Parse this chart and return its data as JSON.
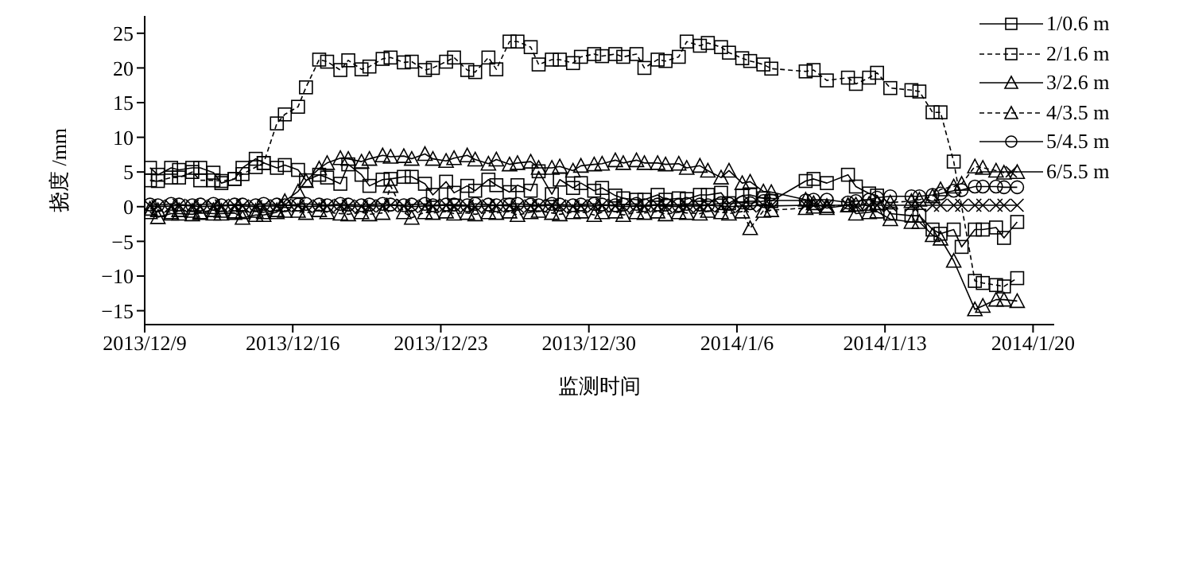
{
  "chart_data": {
    "type": "line",
    "xlabel": "监测时间",
    "ylabel": "挠度 /mm",
    "legend": "top right",
    "xlim": [
      "2013-12-09",
      "2014-01-21"
    ],
    "xticks": [
      {
        "value": "2013-12-09",
        "label": "2013/12/9"
      },
      {
        "value": "2013-12-16",
        "label": "2013/12/16"
      },
      {
        "value": "2013-12-23",
        "label": "2013/12/23"
      },
      {
        "value": "2013-12-30",
        "label": "2013/12/30"
      },
      {
        "value": "2014-01-06",
        "label": "2014/1/6"
      },
      {
        "value": "2014-01-13",
        "label": "2014/1/13"
      },
      {
        "value": "2014-01-20",
        "label": "2014/1/20"
      }
    ],
    "ylim": [
      -17,
      27.5
    ],
    "yticks": [
      -15,
      -10,
      -5,
      0,
      5,
      10,
      15,
      20,
      25
    ],
    "x": [
      "2013-12-09T06:00",
      "2013-12-09T15:00",
      "2013-12-10T06:00",
      "2013-12-10T15:00",
      "2013-12-11T06:00",
      "2013-12-11T15:00",
      "2013-12-12T06:00",
      "2013-12-12T15:00",
      "2013-12-13T06:00",
      "2013-12-13T15:00",
      "2013-12-14T06:00",
      "2013-12-14T15:00",
      "2013-12-15T06:00",
      "2013-12-15T15:00",
      "2013-12-16T06:00",
      "2013-12-16T15:00",
      "2013-12-17T06:00",
      "2013-12-17T15:00",
      "2013-12-18T06:00",
      "2013-12-18T15:00",
      "2013-12-19T06:00",
      "2013-12-19T15:00",
      "2013-12-20T06:00",
      "2013-12-20T15:00",
      "2013-12-21T06:00",
      "2013-12-21T15:00",
      "2013-12-22T06:00",
      "2013-12-22T15:00",
      "2013-12-23T06:00",
      "2013-12-23T15:00",
      "2013-12-24T06:00",
      "2013-12-24T15:00",
      "2013-12-25T06:00",
      "2013-12-25T15:00",
      "2013-12-26T06:00",
      "2013-12-26T15:00",
      "2013-12-27T06:00",
      "2013-12-27T15:00",
      "2013-12-28T06:00",
      "2013-12-28T15:00",
      "2013-12-29T06:00",
      "2013-12-29T15:00",
      "2013-12-30T06:00",
      "2013-12-30T15:00",
      "2013-12-31T06:00",
      "2013-12-31T15:00",
      "2014-01-01T06:00",
      "2014-01-01T15:00",
      "2014-01-02T06:00",
      "2014-01-02T15:00",
      "2014-01-03T06:00",
      "2014-01-03T15:00",
      "2014-01-04T06:00",
      "2014-01-04T15:00",
      "2014-01-05T06:00",
      "2014-01-05T15:00",
      "2014-01-06T06:00",
      "2014-01-06T15:00",
      "2014-01-07T06:00",
      "2014-01-07T15:00",
      "2014-01-09T06:00",
      "2014-01-09T15:00",
      "2014-01-10T06:00",
      "2014-01-11T06:00",
      "2014-01-11T15:00",
      "2014-01-12T06:00",
      "2014-01-12T15:00",
      "2014-01-13T06:00",
      "2014-01-14T06:00",
      "2014-01-14T15:00",
      "2014-01-15T06:00",
      "2014-01-15T15:00",
      "2014-01-16T06:00",
      "2014-01-16T15:00",
      "2014-01-17T06:00",
      "2014-01-17T15:00",
      "2014-01-18T06:00",
      "2014-01-18T15:00",
      "2014-01-19T06:00"
    ],
    "series": [
      {
        "name": "1/0.6 m",
        "color": "#000000",
        "marker": "square",
        "line_style": "solid",
        "values": [
          5.6,
          4.6,
          5.6,
          5.3,
          5.6,
          5.6,
          4.9,
          3.4,
          4.0,
          5.6,
          6.9,
          6.3,
          5.6,
          6.0,
          5.3,
          3.8,
          4.6,
          4.2,
          3.3,
          6.1,
          4.6,
          3.0,
          3.9,
          4.0,
          4.3,
          4.3,
          3.3,
          1.7,
          3.6,
          2.0,
          3.0,
          2.3,
          3.9,
          3.1,
          2.1,
          3.1,
          2.3,
          5.1,
          1.8,
          3.9,
          2.7,
          3.4,
          2.3,
          2.7,
          1.6,
          1.2,
          1.0,
          1.0,
          1.7,
          1.0,
          1.2,
          1.1,
          1.7,
          1.7,
          2.0,
          0.5,
          1.6,
          1.7,
          1.2,
          0.8,
          3.7,
          4.0,
          3.4,
          4.6,
          2.9,
          1.9,
          1.6,
          -1.0,
          -1.3,
          -1.3,
          -3.3,
          -3.9,
          -3.3,
          -5.8,
          -3.3,
          -3.3,
          -3.0,
          -4.5,
          -2.2
        ]
      },
      {
        "name": "2/1.6 m",
        "color": "#000000",
        "marker": "square",
        "line_style": "dashed",
        "x": [
          "2013-12-09T06:00",
          "2013-12-09T15:00",
          "2013-12-10T06:00",
          "2013-12-10T15:00",
          "2013-12-11T06:00",
          "2013-12-11T15:00",
          "2013-12-12T06:00",
          "2013-12-12T15:00",
          "2013-12-13T06:00",
          "2013-12-13T15:00",
          "2013-12-14T06:00",
          "2013-12-14T15:00",
          "2013-12-15T06:00",
          "2013-12-15T15:00",
          "2013-12-16T06:00",
          "2013-12-16T15:00",
          "2013-12-17T06:00",
          "2013-12-17T15:00",
          "2013-12-18T06:00",
          "2013-12-18T15:00",
          "2013-12-19T06:00",
          "2013-12-19T15:00",
          "2013-12-20T06:00",
          "2013-12-20T15:00",
          "2013-12-21T06:00",
          "2013-12-21T15:00",
          "2013-12-22T06:00",
          "2013-12-22T15:00",
          "2013-12-23T06:00",
          "2013-12-23T15:00",
          "2013-12-24T06:00",
          "2013-12-24T15:00",
          "2013-12-25T06:00",
          "2013-12-25T15:00",
          "2013-12-26T06:00",
          "2013-12-26T15:00",
          "2013-12-27T06:00",
          "2013-12-27T15:00",
          "2013-12-28T06:00",
          "2013-12-28T15:00",
          "2013-12-29T06:00",
          "2013-12-29T15:00",
          "2013-12-30T06:00",
          "2013-12-30T15:00",
          "2013-12-31T06:00",
          "2013-12-31T15:00",
          "2014-01-01T06:00",
          "2014-01-01T15:00",
          "2014-01-02T06:00",
          "2014-01-02T15:00",
          "2014-01-03T06:00",
          "2014-01-03T15:00",
          "2014-01-04T06:00",
          "2014-01-04T15:00",
          "2014-01-05T06:00",
          "2014-01-05T15:00",
          "2014-01-06T06:00",
          "2014-01-06T15:00",
          "2014-01-07T06:00",
          "2014-01-07T15:00",
          "2014-01-09T06:00",
          "2014-01-09T15:00",
          "2014-01-10T06:00",
          "2014-01-11T06:00",
          "2014-01-11T15:00",
          "2014-01-12T06:00",
          "2014-01-12T15:00",
          "2014-01-13T06:00",
          "2014-01-14T06:00",
          "2014-01-14T15:00",
          "2014-01-15T06:00",
          "2014-01-15T15:00",
          "2014-01-16T06:00",
          "2014-01-17T06:00",
          "2014-01-17T15:00",
          "2014-01-18T06:00",
          "2014-01-18T15:00",
          "2014-01-19T06:00"
        ],
        "values": [
          3.8,
          3.7,
          4.2,
          4.2,
          5.0,
          3.8,
          3.8,
          3.7,
          4.0,
          4.7,
          5.7,
          6.3,
          12.0,
          13.3,
          14.4,
          17.2,
          21.2,
          20.9,
          19.7,
          21.1,
          19.8,
          20.2,
          21.3,
          21.5,
          20.8,
          20.9,
          19.7,
          20.0,
          20.9,
          21.5,
          19.7,
          19.4,
          21.5,
          19.8,
          23.8,
          23.8,
          23.0,
          20.5,
          21.2,
          21.2,
          20.7,
          21.6,
          22.0,
          21.7,
          22.0,
          21.6,
          22.0,
          20.0,
          21.2,
          21.0,
          21.6,
          23.8,
          23.2,
          23.6,
          23.0,
          22.2,
          21.4,
          21.0,
          20.5,
          19.9,
          19.5,
          19.7,
          18.2,
          18.6,
          17.7,
          18.6,
          19.3,
          17.1,
          16.8,
          16.6,
          13.6,
          13.6,
          6.5,
          -10.7,
          -11.0,
          -11.3,
          -11.5,
          -10.3
        ]
      },
      {
        "name": "3/2.6 m",
        "color": "#000000",
        "marker": "triangle",
        "line_style": "solid",
        "x": [
          "2013-12-09T06:00",
          "2013-12-09T15:00",
          "2013-12-10T06:00",
          "2013-12-10T15:00",
          "2013-12-11T06:00",
          "2013-12-11T15:00",
          "2013-12-12T06:00",
          "2013-12-12T15:00",
          "2013-12-13T06:00",
          "2013-12-13T15:00",
          "2013-12-14T06:00",
          "2013-12-14T15:00",
          "2013-12-15T06:00",
          "2013-12-15T15:00",
          "2013-12-16T06:00",
          "2013-12-16T15:00",
          "2013-12-17T06:00",
          "2013-12-17T15:00",
          "2013-12-18T06:00",
          "2013-12-18T15:00",
          "2013-12-19T06:00",
          "2013-12-19T15:00",
          "2013-12-20T06:00",
          "2013-12-20T15:00",
          "2013-12-21T06:00",
          "2013-12-21T15:00",
          "2013-12-22T06:00",
          "2013-12-22T15:00",
          "2013-12-23T06:00",
          "2013-12-23T15:00",
          "2013-12-24T06:00",
          "2013-12-24T15:00",
          "2013-12-25T06:00",
          "2013-12-25T15:00",
          "2013-12-26T06:00",
          "2013-12-26T15:00",
          "2013-12-27T06:00",
          "2013-12-27T15:00",
          "2013-12-28T06:00",
          "2013-12-28T15:00",
          "2013-12-29T06:00",
          "2013-12-29T15:00",
          "2013-12-30T06:00",
          "2013-12-30T15:00",
          "2013-12-31T06:00",
          "2013-12-31T15:00",
          "2014-01-01T06:00",
          "2014-01-01T15:00",
          "2014-01-02T06:00",
          "2014-01-02T15:00",
          "2014-01-03T06:00",
          "2014-01-03T15:00",
          "2014-01-04T06:00",
          "2014-01-04T15:00",
          "2014-01-05T06:00",
          "2014-01-05T15:00",
          "2014-01-06T06:00",
          "2014-01-06T15:00",
          "2014-01-07T06:00",
          "2014-01-07T15:00",
          "2014-01-09T06:00",
          "2014-01-09T15:00",
          "2014-01-10T06:00",
          "2014-01-11T06:00",
          "2014-01-11T15:00",
          "2014-01-12T06:00",
          "2014-01-12T15:00",
          "2014-01-13T06:00",
          "2014-01-14T06:00",
          "2014-01-14T15:00",
          "2014-01-15T06:00",
          "2014-01-15T15:00",
          "2014-01-16T06:00",
          "2014-01-17T06:00",
          "2014-01-17T15:00",
          "2014-01-18T06:00",
          "2014-01-18T15:00",
          "2014-01-19T06:00"
        ],
        "values": [
          -0.8,
          -1.5,
          -1.0,
          -1.0,
          -1.1,
          -0.9,
          -1.0,
          -1.0,
          -0.9,
          -1.6,
          -1.2,
          -1.2,
          -0.8,
          0.8,
          2.2,
          3.7,
          5.5,
          6.3,
          7.0,
          6.9,
          6.5,
          6.9,
          7.4,
          7.2,
          7.3,
          6.9,
          7.6,
          6.9,
          6.6,
          7.0,
          7.4,
          6.8,
          6.2,
          6.8,
          6.1,
          6.3,
          6.5,
          5.6,
          5.6,
          5.8,
          5.2,
          5.9,
          6.1,
          6.2,
          6.7,
          6.3,
          6.7,
          6.3,
          6.3,
          6.1,
          6.2,
          5.6,
          5.9,
          5.2,
          4.2,
          5.2,
          3.4,
          3.6,
          2.2,
          2.1,
          1.0,
          0.5,
          -0.2,
          0.2,
          -1.0,
          -0.8,
          -0.7,
          -1.8,
          -2.2,
          -2.2,
          -4.1,
          -4.6,
          -7.8,
          -14.8,
          -14.3,
          -13.4,
          -13.4,
          -13.6
        ]
      },
      {
        "name": "4/3.5 m",
        "color": "#000000",
        "marker": "triangle",
        "line_style": "dashed",
        "values": [
          -0.3,
          -0.5,
          -0.8,
          -0.5,
          -0.6,
          -0.8,
          -0.5,
          -0.6,
          -0.7,
          -0.8,
          -0.6,
          -0.8,
          -0.5,
          -0.6,
          -0.6,
          -0.9,
          -0.5,
          -0.8,
          -1.0,
          -1.1,
          -0.8,
          -1.1,
          -0.9,
          3.0,
          -0.8,
          -1.6,
          -0.8,
          -0.9,
          -0.7,
          -1.0,
          -0.9,
          -1.1,
          -0.8,
          -0.9,
          -0.7,
          -1.2,
          -0.8,
          -0.6,
          -0.9,
          -1.1,
          -0.8,
          -0.7,
          -1.2,
          -0.8,
          -0.7,
          -1.2,
          -0.8,
          -0.9,
          -0.7,
          -1.1,
          -0.8,
          -0.9,
          -1.0,
          -0.6,
          -0.8,
          -1.0,
          -0.7,
          -3.1,
          -0.6,
          -0.5,
          -0.2,
          0.0,
          0.1,
          0.2,
          0.3,
          0.4,
          0.5,
          0.6,
          0.8,
          1.0,
          1.5,
          2.5,
          2.9,
          3.3,
          5.8,
          5.6,
          5.2,
          4.9,
          5.0
        ]
      },
      {
        "name": "5/4.5 m",
        "color": "#000000",
        "marker": "circle",
        "line_style": "solid",
        "values": [
          0.3,
          0.2,
          0.4,
          0.3,
          0.2,
          0.3,
          0.4,
          0.2,
          0.3,
          0.3,
          0.2,
          0.4,
          0.3,
          0.2,
          0.3,
          0.4,
          0.3,
          0.2,
          0.4,
          0.3,
          0.2,
          0.3,
          0.4,
          0.3,
          0.2,
          0.3,
          0.4,
          0.2,
          0.3,
          0.3,
          0.2,
          0.4,
          0.3,
          0.2,
          0.3,
          0.4,
          0.3,
          0.2,
          0.4,
          0.3,
          0.2,
          0.3,
          0.4,
          0.3,
          0.2,
          0.3,
          0.4,
          0.2,
          0.3,
          0.3,
          0.2,
          0.4,
          0.3,
          0.2,
          0.5,
          0.4,
          0.6,
          0.5,
          0.8,
          0.9,
          0.9,
          1.0,
          1.0,
          0.6,
          0.8,
          1.0,
          1.3,
          1.5,
          1.5,
          1.5,
          1.7,
          1.9,
          2.3,
          2.4,
          2.9,
          2.9,
          2.9,
          2.8,
          2.8
        ]
      },
      {
        "name": "6/5.5 m",
        "color": "#000000",
        "marker": "cross",
        "line_style": "solid",
        "values": [
          0.1,
          0.0,
          0.1,
          0.2,
          0.1,
          0.0,
          0.1,
          0.1,
          0.2,
          0.1,
          0.0,
          0.1,
          0.1,
          0.2,
          0.1,
          0.0,
          0.1,
          0.1,
          0.2,
          0.1,
          0.0,
          0.1,
          0.1,
          0.2,
          0.1,
          0.0,
          0.1,
          0.1,
          0.2,
          0.1,
          0.1,
          0.0,
          0.1,
          0.2,
          0.1,
          0.0,
          0.1,
          0.1,
          0.2,
          0.1,
          0.0,
          0.1,
          0.1,
          0.2,
          0.1,
          0.0,
          0.1,
          0.1,
          0.2,
          0.1,
          0.0,
          0.1,
          0.1,
          0.2,
          0.1,
          0.0,
          0.1,
          0.1,
          0.2,
          0.1,
          0.2,
          0.2,
          0.2,
          0.2,
          0.2,
          0.2,
          0.2,
          0.2,
          0.2,
          0.2,
          0.2,
          0.2,
          0.2,
          0.2,
          0.2,
          0.2,
          0.2,
          0.2,
          0.2
        ]
      }
    ]
  }
}
